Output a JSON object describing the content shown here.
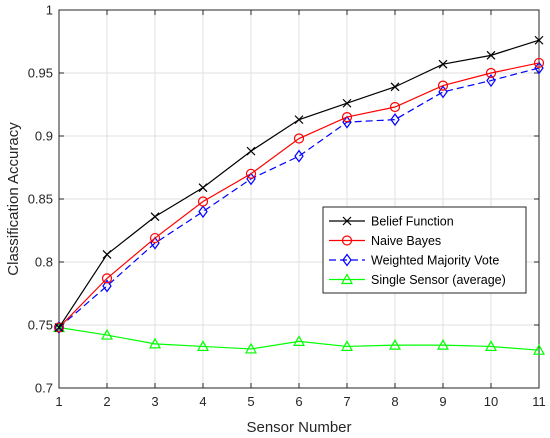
{
  "chart_data": {
    "type": "line",
    "title": "",
    "xlabel": "Sensor Number",
    "ylabel": "Classification Accuracy",
    "xlim": [
      1,
      11
    ],
    "ylim": [
      0.7,
      1.0
    ],
    "xticks": [
      "1",
      "2",
      "3",
      "4",
      "5",
      "6",
      "7",
      "8",
      "9",
      "10",
      "11"
    ],
    "yticks": [
      "0.7",
      "0.75",
      "0.8",
      "0.85",
      "0.9",
      "0.95",
      "1"
    ],
    "grid": true,
    "legend_position": "lower-right",
    "x": [
      1,
      2,
      3,
      4,
      5,
      6,
      7,
      8,
      9,
      10,
      11
    ],
    "series": [
      {
        "name": "Belief Function",
        "color": "#000000",
        "marker": "x",
        "dash": "solid",
        "values": [
          0.748,
          0.806,
          0.836,
          0.859,
          0.888,
          0.913,
          0.926,
          0.939,
          0.957,
          0.964,
          0.976
        ]
      },
      {
        "name": "Naive Bayes",
        "color": "#ff0000",
        "marker": "circle",
        "dash": "solid",
        "values": [
          0.748,
          0.787,
          0.819,
          0.848,
          0.87,
          0.898,
          0.915,
          0.923,
          0.94,
          0.95,
          0.958
        ]
      },
      {
        "name": "Weighted Majority Vote",
        "color": "#0000ff",
        "marker": "diamond",
        "dash": "dashed",
        "values": [
          0.748,
          0.781,
          0.815,
          0.84,
          0.866,
          0.884,
          0.911,
          0.913,
          0.935,
          0.944,
          0.954
        ]
      },
      {
        "name": "Single Sensor (average)",
        "color": "#00ff00",
        "marker": "triangle",
        "dash": "solid",
        "values": [
          0.748,
          0.742,
          0.735,
          0.733,
          0.731,
          0.737,
          0.733,
          0.734,
          0.734,
          0.733,
          0.73
        ]
      }
    ]
  }
}
